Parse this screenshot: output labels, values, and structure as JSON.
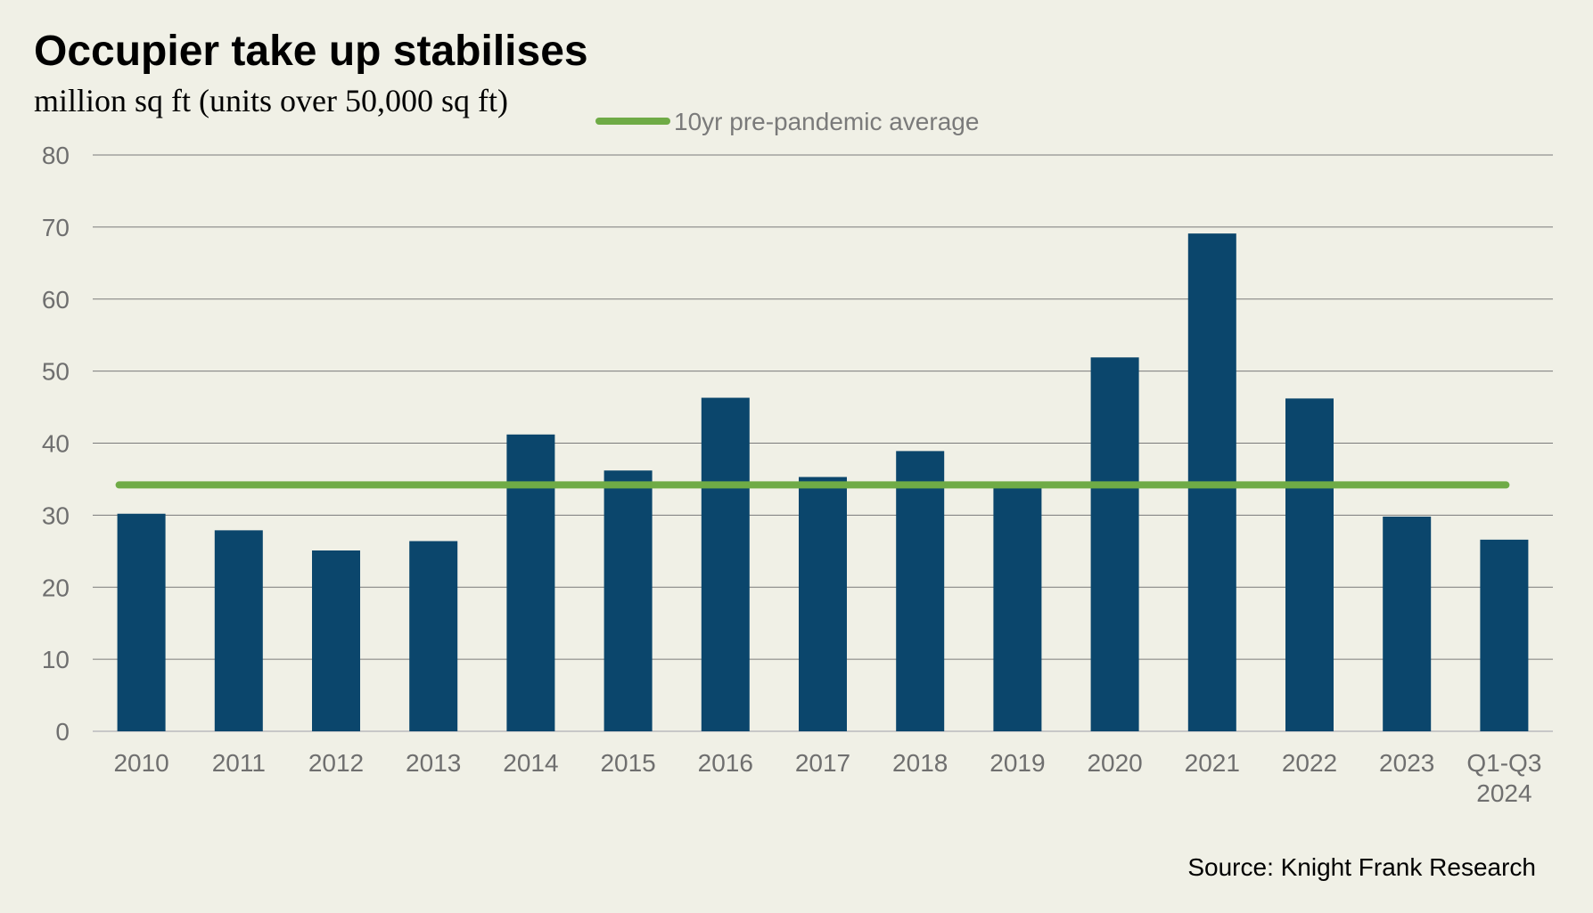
{
  "title": "Occupier take up stabilises",
  "subtitle": "million sq ft (units over 50,000 sq ft)",
  "source": "Source: Knight Frank Research",
  "colors": {
    "bar": "#0b466c",
    "average_line": "#6fab46",
    "grid": "#7a7a7a",
    "tick_text": "#6f6f6f",
    "legend_text": "#7a7a7a"
  },
  "chart_data": {
    "type": "bar",
    "categories": [
      "2010",
      "2011",
      "2012",
      "2013",
      "2014",
      "2015",
      "2016",
      "2017",
      "2018",
      "2019",
      "2020",
      "2021",
      "2022",
      "2023",
      "Q1-Q3 2024"
    ],
    "category_labels": [
      [
        "2010"
      ],
      [
        "2011"
      ],
      [
        "2012"
      ],
      [
        "2013"
      ],
      [
        "2014"
      ],
      [
        "2015"
      ],
      [
        "2016"
      ],
      [
        "2017"
      ],
      [
        "2018"
      ],
      [
        "2019"
      ],
      [
        "2020"
      ],
      [
        "2021"
      ],
      [
        "2022"
      ],
      [
        "2023"
      ],
      [
        "Q1-Q3",
        "2024"
      ]
    ],
    "values": [
      30.2,
      27.9,
      25.1,
      26.4,
      41.2,
      36.2,
      46.3,
      35.3,
      38.9,
      34.0,
      51.9,
      69.1,
      46.2,
      29.8,
      26.6
    ],
    "reference_line": {
      "name": "10yr pre-pandemic average",
      "value": 34.2
    },
    "ylim": [
      0,
      80
    ],
    "yticks": [
      0,
      10,
      20,
      30,
      40,
      50,
      60,
      70,
      80
    ],
    "grid": true,
    "legend_position": "top-center",
    "title": "Occupier take up stabilises",
    "ylabel": "million sq ft (units over 50,000 sq ft)",
    "xlabel": ""
  }
}
